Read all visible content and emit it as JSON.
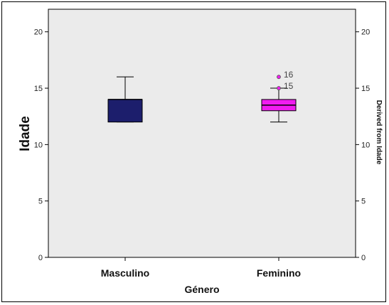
{
  "chart_data": {
    "type": "boxplot",
    "xlabel": "Género",
    "ylabel": "Idade",
    "ylabel_right": "Derived from Idade",
    "ylim": [
      0,
      22
    ],
    "yticks": [
      0,
      5,
      10,
      15,
      20
    ],
    "grid": false,
    "categories": [
      "Masculino",
      "Feminino"
    ],
    "boxes": [
      {
        "category": "Masculino",
        "min": 12,
        "q1": 12,
        "median": 14,
        "q3": 14,
        "max": 16,
        "color": "#1c1e6c",
        "outliers": []
      },
      {
        "category": "Feminino",
        "min": 12,
        "q1": 13,
        "median": 13.5,
        "q3": 14,
        "max": 15,
        "color": "#f01cf0",
        "outliers": [
          {
            "value": 16,
            "label": "16"
          },
          {
            "value": 15,
            "label": "15"
          }
        ]
      }
    ]
  },
  "colors": {
    "plot_background": "#ebebeb",
    "axis": "#000000"
  }
}
